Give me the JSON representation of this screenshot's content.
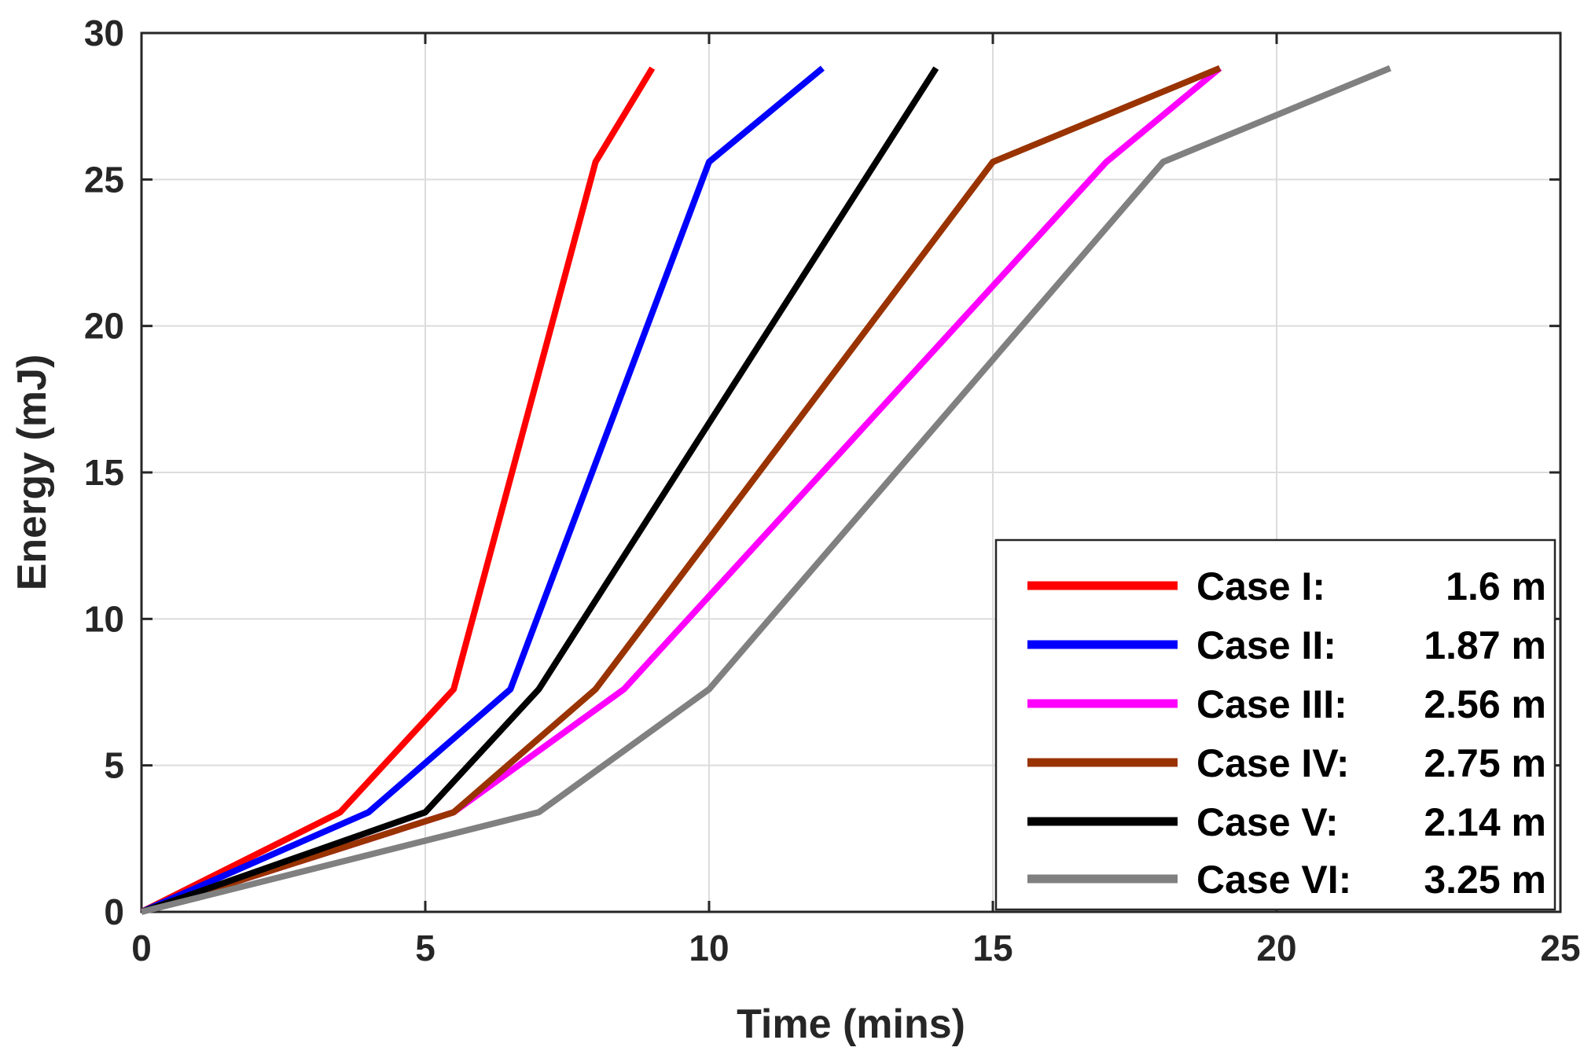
{
  "chart_data": {
    "type": "line",
    "title": "",
    "xlabel": "Time (mins)",
    "ylabel": "Energy (mJ)",
    "xlim": [
      0,
      25
    ],
    "ylim": [
      0,
      30
    ],
    "xticks": [
      0,
      5,
      10,
      15,
      20,
      25
    ],
    "yticks": [
      0,
      5,
      10,
      15,
      20,
      25,
      30
    ],
    "grid": true,
    "legend_position": "bottom-right",
    "series": [
      {
        "name": "Case I:",
        "value_label": "1.6 m",
        "color": "#ff0000",
        "x": [
          0,
          3.5,
          5.5,
          8,
          9
        ],
        "y": [
          0,
          3.4,
          7.6,
          25.6,
          28.8
        ]
      },
      {
        "name": "Case II:",
        "value_label": "1.87 m",
        "color": "#0000ff",
        "x": [
          0,
          4,
          6.5,
          10,
          12
        ],
        "y": [
          0,
          3.4,
          7.6,
          25.6,
          28.8
        ]
      },
      {
        "name": "Case III:",
        "value_label": "2.56 m",
        "color": "#ff00ff",
        "x": [
          0,
          5.5,
          8.5,
          17,
          19
        ],
        "y": [
          0,
          3.4,
          7.6,
          25.6,
          28.8
        ]
      },
      {
        "name": "Case IV:",
        "value_label": "2.75 m",
        "color": "#993300",
        "x": [
          0,
          5.5,
          8,
          15,
          19
        ],
        "y": [
          0,
          3.4,
          7.6,
          25.6,
          28.8
        ]
      },
      {
        "name": "Case V:",
        "value_label": "2.14 m",
        "color": "#000000",
        "x": [
          0,
          5,
          7,
          14
        ],
        "y": [
          0,
          3.4,
          7.6,
          28.8
        ]
      },
      {
        "name": "Case VI:",
        "value_label": "3.25 m",
        "color": "#808080",
        "x": [
          0,
          7,
          10,
          18,
          22
        ],
        "y": [
          0,
          3.4,
          7.6,
          25.6,
          28.8
        ]
      }
    ]
  }
}
